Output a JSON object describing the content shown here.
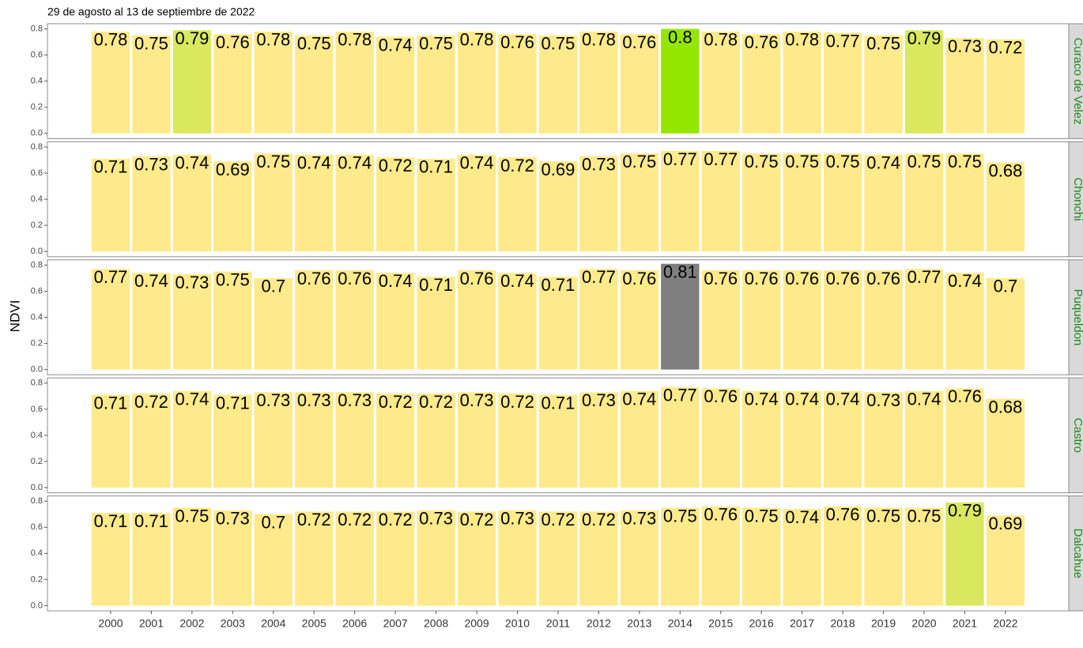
{
  "chart_data": {
    "type": "bar",
    "title": "29 de agosto al 13 de septiembre de 2022",
    "y_label": "NDVI",
    "categories": [
      "2000",
      "2001",
      "2002",
      "2003",
      "2004",
      "2005",
      "2006",
      "2007",
      "2008",
      "2009",
      "2010",
      "2011",
      "2012",
      "2013",
      "2014",
      "2015",
      "2016",
      "2017",
      "2018",
      "2019",
      "2020",
      "2021",
      "2022"
    ],
    "ylim": [
      -0.04,
      0.84
    ],
    "yticks": [
      {
        "value": 0,
        "label": "0.0"
      },
      {
        "value": 0.2,
        "label": "0.2"
      },
      {
        "value": 0.4,
        "label": "0.4"
      },
      {
        "value": 0.6,
        "label": "0.6"
      },
      {
        "value": 0.8,
        "label": "0.8"
      }
    ],
    "grid": false,
    "panels": [
      {
        "name": "Curaco de Velez",
        "values": [
          0.78,
          0.75,
          0.79,
          0.76,
          0.78,
          0.75,
          0.78,
          0.74,
          0.75,
          0.78,
          0.76,
          0.75,
          0.78,
          0.76,
          0.8,
          0.78,
          0.76,
          0.78,
          0.77,
          0.75,
          0.79,
          0.73,
          0.72
        ],
        "colors": [
          "#feea8a",
          "#feea8a",
          "#d9e85f",
          "#feea8a",
          "#feea8a",
          "#feea8a",
          "#feea8a",
          "#feea8a",
          "#feea8a",
          "#feea8a",
          "#feea8a",
          "#feea8a",
          "#feea8a",
          "#feea8a",
          "#94e600",
          "#feea8a",
          "#feea8a",
          "#feea8a",
          "#feea8a",
          "#feea8a",
          "#d9e85f",
          "#feea8a",
          "#feea8a"
        ]
      },
      {
        "name": "Chonchi",
        "values": [
          0.71,
          0.73,
          0.74,
          0.69,
          0.75,
          0.74,
          0.74,
          0.72,
          0.71,
          0.74,
          0.72,
          0.69,
          0.73,
          0.75,
          0.77,
          0.77,
          0.75,
          0.75,
          0.75,
          0.74,
          0.75,
          0.75,
          0.68
        ],
        "colors": [
          "#feea8a",
          "#feea8a",
          "#feea8a",
          "#feea8a",
          "#feea8a",
          "#feea8a",
          "#feea8a",
          "#feea8a",
          "#feea8a",
          "#feea8a",
          "#feea8a",
          "#feea8a",
          "#feea8a",
          "#feea8a",
          "#feea8a",
          "#feea8a",
          "#feea8a",
          "#feea8a",
          "#feea8a",
          "#feea8a",
          "#feea8a",
          "#feea8a",
          "#feea8a"
        ]
      },
      {
        "name": "Puqueldon",
        "values": [
          0.77,
          0.74,
          0.73,
          0.75,
          0.7,
          0.76,
          0.76,
          0.74,
          0.71,
          0.76,
          0.74,
          0.71,
          0.77,
          0.76,
          0.81,
          0.76,
          0.76,
          0.76,
          0.76,
          0.76,
          0.77,
          0.74,
          0.7
        ],
        "colors": [
          "#feea8a",
          "#feea8a",
          "#feea8a",
          "#feea8a",
          "#feea8a",
          "#feea8a",
          "#feea8a",
          "#feea8a",
          "#feea8a",
          "#feea8a",
          "#feea8a",
          "#feea8a",
          "#feea8a",
          "#feea8a",
          "#7f7f7f",
          "#feea8a",
          "#feea8a",
          "#feea8a",
          "#feea8a",
          "#feea8a",
          "#feea8a",
          "#feea8a",
          "#feea8a"
        ]
      },
      {
        "name": "Castro",
        "values": [
          0.71,
          0.72,
          0.74,
          0.71,
          0.73,
          0.73,
          0.73,
          0.72,
          0.72,
          0.73,
          0.72,
          0.71,
          0.73,
          0.74,
          0.77,
          0.76,
          0.74,
          0.74,
          0.74,
          0.73,
          0.74,
          0.76,
          0.68
        ],
        "colors": [
          "#feea8a",
          "#feea8a",
          "#feea8a",
          "#feea8a",
          "#feea8a",
          "#feea8a",
          "#feea8a",
          "#feea8a",
          "#feea8a",
          "#feea8a",
          "#feea8a",
          "#feea8a",
          "#feea8a",
          "#feea8a",
          "#feea8a",
          "#feea8a",
          "#feea8a",
          "#feea8a",
          "#feea8a",
          "#feea8a",
          "#feea8a",
          "#feea8a",
          "#feea8a"
        ]
      },
      {
        "name": "Dalcahue",
        "values": [
          0.71,
          0.71,
          0.75,
          0.73,
          0.7,
          0.72,
          0.72,
          0.72,
          0.73,
          0.72,
          0.73,
          0.72,
          0.72,
          0.73,
          0.75,
          0.76,
          0.75,
          0.74,
          0.76,
          0.75,
          0.75,
          0.79,
          0.69
        ],
        "colors": [
          "#feea8a",
          "#feea8a",
          "#feea8a",
          "#feea8a",
          "#feea8a",
          "#feea8a",
          "#feea8a",
          "#feea8a",
          "#feea8a",
          "#feea8a",
          "#feea8a",
          "#feea8a",
          "#feea8a",
          "#feea8a",
          "#feea8a",
          "#feea8a",
          "#feea8a",
          "#feea8a",
          "#feea8a",
          "#feea8a",
          "#feea8a",
          "#d9e85f",
          "#feea8a"
        ]
      }
    ]
  }
}
